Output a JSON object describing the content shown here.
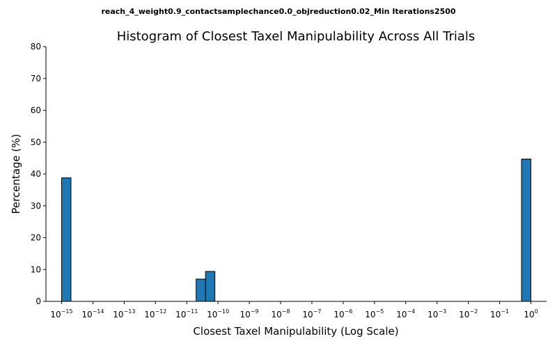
{
  "chart_data": {
    "type": "bar",
    "suptitle": "reach_4_weight0.9_contactsamplechance0.0_objreduction0.02_Min Iterations2500",
    "title": "Histogram of Closest Taxel Manipulability Across All Trials",
    "xlabel": "Closest Taxel Manipulability (Log Scale)",
    "ylabel": "Percentage (%)",
    "xscale": "log",
    "xlim_exponent": [
      -15.5,
      0.5
    ],
    "ylim": [
      0,
      80
    ],
    "y_ticks": [
      0,
      10,
      20,
      30,
      40,
      50,
      60,
      70,
      80
    ],
    "x_ticks": [
      "10^−15",
      "10^−14",
      "10^−13",
      "10^−12",
      "10^−11",
      "10^−10",
      "10^−9",
      "10^−8",
      "10^−7",
      "10^−6",
      "10^−5",
      "10^−4",
      "10^−3",
      "10^−2",
      "10^−1",
      "10^0"
    ],
    "x_tick_exponents": [
      -15,
      -14,
      -13,
      -12,
      -11,
      -10,
      -9,
      -8,
      -7,
      -6,
      -5,
      -4,
      -3,
      -2,
      -1,
      0
    ],
    "bars": [
      {
        "x0_exponent": -15.0,
        "x1_exponent": -14.7,
        "value": 38.8
      },
      {
        "x0_exponent": -10.7,
        "x1_exponent": -10.4,
        "value": 7.0
      },
      {
        "x0_exponent": -10.4,
        "x1_exponent": -10.1,
        "value": 9.4
      },
      {
        "x0_exponent": -0.3,
        "x1_exponent": 0.0,
        "value": 44.7
      }
    ],
    "bar_color": "#1f77b4",
    "bar_edge_color": "#000000",
    "grid": false,
    "spines": "left-bottom"
  }
}
